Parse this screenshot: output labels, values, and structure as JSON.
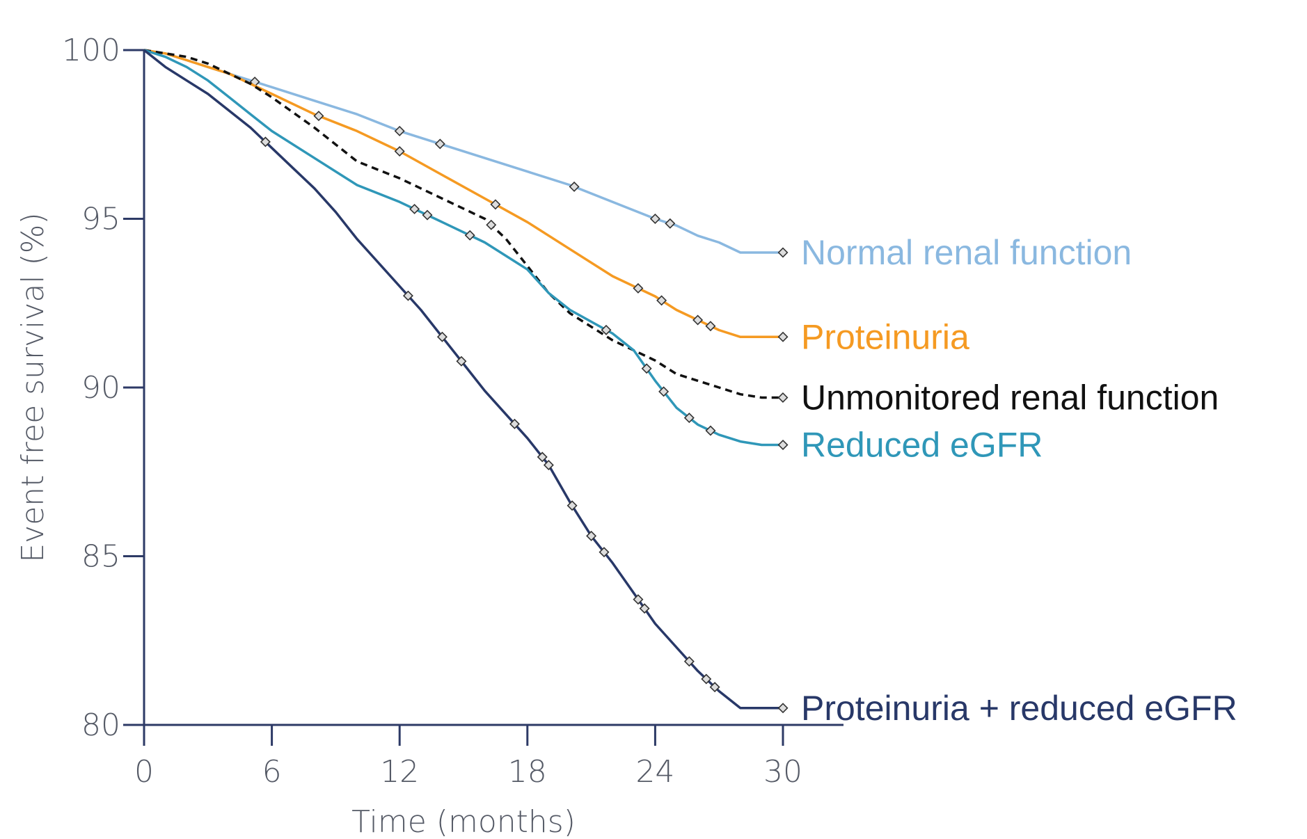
{
  "chart_data": {
    "type": "line",
    "xlabel": "Time (months)",
    "ylabel": "Event free survival (%)",
    "xlim": [
      0,
      30
    ],
    "ylim": [
      80,
      100
    ],
    "xticks": [
      0,
      6,
      12,
      18,
      24,
      30
    ],
    "yticks": [
      80,
      85,
      90,
      95,
      100
    ],
    "grid": false,
    "legend": "labels at line ends",
    "axis_color": "#2d3a66",
    "series": [
      {
        "name": "Normal renal function",
        "color": "#8ab8e0",
        "dashed": false,
        "x": [
          0,
          1,
          2,
          3,
          4,
          5,
          6,
          8,
          10,
          12,
          14,
          16,
          18,
          20,
          22,
          24,
          25,
          26,
          27,
          28,
          29,
          30
        ],
        "y": [
          100,
          99.9,
          99.7,
          99.5,
          99.3,
          99.1,
          98.9,
          98.5,
          98.1,
          97.6,
          97.2,
          96.8,
          96.4,
          96.0,
          95.5,
          95.0,
          94.8,
          94.5,
          94.3,
          94.0,
          94.0,
          94.0
        ],
        "censor_x": [
          5.2,
          12,
          13.9,
          20.2,
          24,
          24.7,
          30
        ]
      },
      {
        "name": "Proteinuria",
        "color": "#f59a22",
        "dashed": false,
        "x": [
          0,
          1,
          2,
          3,
          4,
          5,
          6,
          8,
          10,
          12,
          14,
          16,
          18,
          20,
          22,
          24,
          25,
          26,
          27,
          28,
          29,
          30
        ],
        "y": [
          100,
          99.9,
          99.7,
          99.5,
          99.3,
          99.0,
          98.7,
          98.1,
          97.6,
          97.0,
          96.3,
          95.6,
          94.9,
          94.1,
          93.3,
          92.7,
          92.3,
          92.0,
          91.7,
          91.5,
          91.5,
          91.5
        ],
        "censor_x": [
          8.2,
          12,
          16.5,
          23.2,
          24.3,
          26,
          26.6,
          30
        ]
      },
      {
        "name": "Unmonitored renal function",
        "color": "#111111",
        "dashed": true,
        "x": [
          0,
          1,
          2,
          3,
          4,
          5,
          6,
          8,
          10,
          12,
          14,
          16,
          17,
          18,
          19,
          20,
          22,
          24,
          25,
          26,
          27,
          28,
          29,
          30
        ],
        "y": [
          100,
          99.9,
          99.8,
          99.6,
          99.3,
          99.0,
          98.6,
          97.7,
          96.7,
          96.2,
          95.6,
          95.0,
          94.4,
          93.6,
          92.8,
          92.2,
          91.4,
          90.8,
          90.4,
          90.2,
          90.0,
          89.8,
          89.7,
          89.7
        ],
        "censor_x": [
          16.3,
          30
        ]
      },
      {
        "name": "Reduced eGFR",
        "color": "#2f97b8",
        "dashed": false,
        "x": [
          0,
          1,
          2,
          3,
          4,
          5,
          6,
          8,
          10,
          12,
          14,
          16,
          18,
          19,
          20,
          22,
          23,
          24,
          25,
          26,
          27,
          28,
          29,
          30
        ],
        "y": [
          100,
          99.8,
          99.5,
          99.1,
          98.6,
          98.1,
          97.6,
          96.8,
          96.0,
          95.5,
          94.9,
          94.3,
          93.5,
          92.8,
          92.3,
          91.6,
          91.1,
          90.2,
          89.4,
          88.9,
          88.6,
          88.4,
          88.3,
          88.3
        ],
        "censor_x": [
          12.7,
          13.3,
          15.3,
          21.7,
          23.6,
          24.4,
          25.6,
          26.6,
          30
        ]
      },
      {
        "name": "Proteinuria + reduced eGFR",
        "color": "#283868",
        "dashed": false,
        "x": [
          0,
          1,
          2,
          3,
          4,
          5,
          6,
          7,
          8,
          9,
          10,
          11,
          12,
          13,
          14,
          15,
          16,
          17,
          18,
          19,
          20,
          21,
          22,
          23,
          24,
          25,
          26,
          27,
          28,
          29,
          30
        ],
        "y": [
          100,
          99.5,
          99.1,
          98.7,
          98.2,
          97.7,
          97.1,
          96.5,
          95.9,
          95.2,
          94.4,
          93.7,
          93.0,
          92.3,
          91.5,
          90.7,
          89.9,
          89.2,
          88.5,
          87.7,
          86.6,
          85.6,
          84.8,
          83.9,
          83.0,
          82.3,
          81.6,
          81.0,
          80.5,
          80.5,
          80.5
        ],
        "censor_x": [
          5.7,
          12.4,
          14,
          14.9,
          17.4,
          18.7,
          19,
          20.1,
          21,
          21.6,
          23.2,
          23.5,
          25.6,
          26.4,
          26.8,
          30
        ]
      }
    ]
  }
}
